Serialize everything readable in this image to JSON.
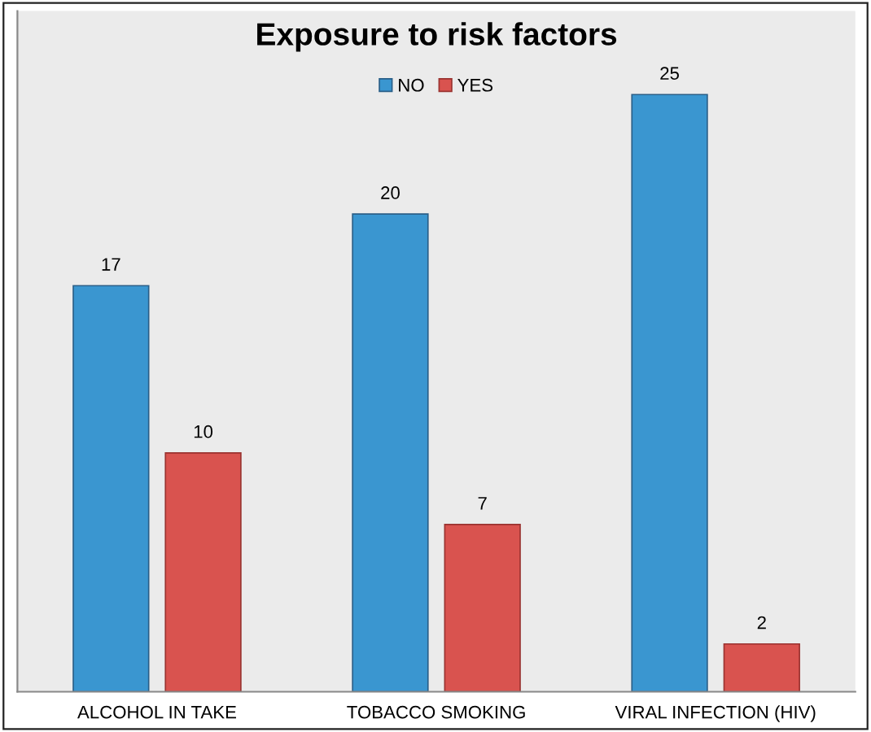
{
  "chart_data": {
    "type": "bar",
    "title": "Exposure to risk factors",
    "categories": [
      "ALCOHOL IN TAKE",
      "TOBACCO SMOKING",
      "VIRAL INFECTION (HIV)"
    ],
    "series": [
      {
        "name": "NO",
        "color": "#3a96d0",
        "values": [
          17,
          20,
          25
        ]
      },
      {
        "name": "YES",
        "color": "#d9534f",
        "values": [
          10,
          7,
          2
        ]
      }
    ],
    "data_labels": true,
    "legend": "top",
    "grid": false
  }
}
